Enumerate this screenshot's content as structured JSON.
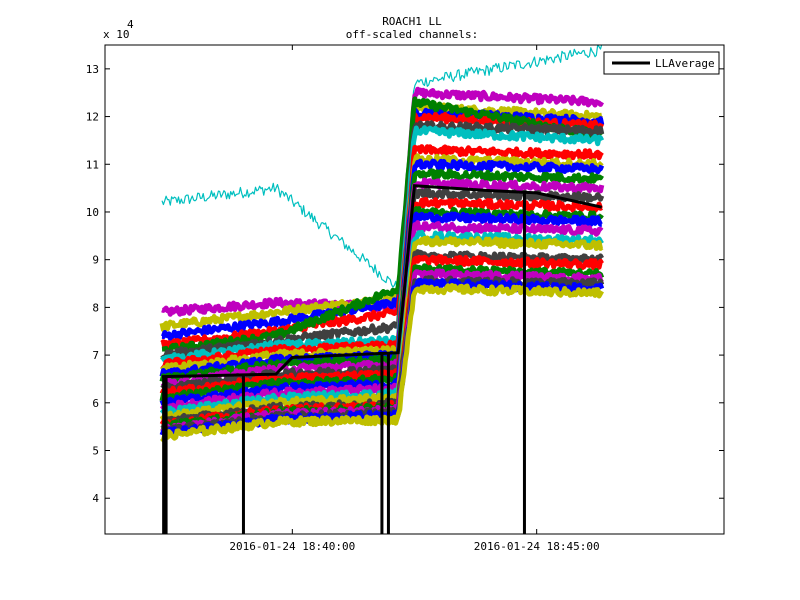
{
  "figure": {
    "title_line1": "ROACH1 LL",
    "title_line2": "off-scaled channels:",
    "y_exponent_base": "x 10",
    "y_exponent_power": "4"
  },
  "legend": {
    "position": "top-right",
    "entries": [
      {
        "label": "LLAverage",
        "color": "#000000"
      }
    ]
  },
  "chart_data": {
    "type": "line",
    "title": "ROACH1 LL",
    "subtitle": "off-scaled channels:",
    "ylabel": "",
    "xlabel": "",
    "x_units": "time",
    "y_scale_note": "x 10^4",
    "xlim": [
      "2016-01-24 18:36:10",
      "2016-01-24 18:48:50"
    ],
    "ylim": [
      3.25,
      13.5
    ],
    "xticks": [
      "2016-01-24 18:40:00",
      "2016-01-24 18:45:00"
    ],
    "yticks": [
      4,
      5,
      6,
      7,
      8,
      9,
      10,
      11,
      12,
      13
    ],
    "grid": false,
    "data_start": "2016-01-24 18:37:20",
    "data_end": "2016-01-24 18:46:20",
    "time_segments": [
      "18:37:20",
      "18:39:40",
      "18:42:10",
      "18:42:30",
      "18:46:20"
    ],
    "background_channels": [
      {
        "color": "#00bfbf",
        "values": [
          10.2,
          10.5,
          8.4,
          12.7,
          13.4
        ],
        "noise": 0.12
      },
      {
        "color": "#bf00bf",
        "values": [
          7.9,
          8.1,
          8.0,
          12.5,
          12.3
        ],
        "noise": 0.08
      },
      {
        "color": "#bfbf00",
        "values": [
          7.6,
          7.9,
          8.2,
          12.2,
          12.0
        ],
        "noise": 0.08
      },
      {
        "color": "#0000ff",
        "values": [
          7.4,
          7.7,
          8.1,
          12.1,
          11.9
        ],
        "noise": 0.08
      },
      {
        "color": "#ff0000",
        "values": [
          7.2,
          7.5,
          7.9,
          12.0,
          11.8
        ],
        "noise": 0.08
      },
      {
        "color": "#008000",
        "values": [
          7.1,
          7.4,
          8.4,
          12.3,
          11.6
        ],
        "noise": 0.08
      },
      {
        "color": "#404040",
        "values": [
          7.0,
          7.3,
          7.6,
          11.8,
          11.7
        ],
        "noise": 0.08
      },
      {
        "color": "#00bfbf",
        "values": [
          6.9,
          7.2,
          7.3,
          11.7,
          11.5
        ],
        "noise": 0.08
      },
      {
        "color": "#ff0000",
        "values": [
          6.8,
          7.1,
          7.2,
          11.3,
          11.2
        ],
        "noise": 0.08
      },
      {
        "color": "#bfbf00",
        "values": [
          6.7,
          7.0,
          7.1,
          11.1,
          11.0
        ],
        "noise": 0.08
      },
      {
        "color": "#0000ff",
        "values": [
          6.6,
          6.9,
          7.0,
          11.0,
          10.9
        ],
        "noise": 0.08
      },
      {
        "color": "#008000",
        "values": [
          6.5,
          6.8,
          6.9,
          10.8,
          10.7
        ],
        "noise": 0.08
      },
      {
        "color": "#bf00bf",
        "values": [
          6.4,
          6.7,
          6.8,
          10.6,
          10.5
        ],
        "noise": 0.08
      },
      {
        "color": "#404040",
        "values": [
          6.3,
          6.6,
          6.7,
          10.4,
          10.3
        ],
        "noise": 0.08
      },
      {
        "color": "#ff0000",
        "values": [
          6.2,
          6.5,
          6.6,
          10.2,
          10.1
        ],
        "noise": 0.08
      },
      {
        "color": "#008000",
        "values": [
          6.1,
          6.4,
          6.5,
          10.0,
          9.9
        ],
        "noise": 0.08
      },
      {
        "color": "#0000ff",
        "values": [
          6.0,
          6.3,
          6.4,
          9.9,
          9.8
        ],
        "noise": 0.08
      },
      {
        "color": "#bf00bf",
        "values": [
          5.9,
          6.2,
          6.3,
          9.7,
          9.6
        ],
        "noise": 0.08
      },
      {
        "color": "#00bfbf",
        "values": [
          5.8,
          6.1,
          6.2,
          9.5,
          9.4
        ],
        "noise": 0.08
      },
      {
        "color": "#bfbf00",
        "values": [
          5.7,
          6.0,
          6.1,
          9.4,
          9.3
        ],
        "noise": 0.08
      },
      {
        "color": "#404040",
        "values": [
          5.6,
          5.9,
          6.0,
          9.1,
          9.0
        ],
        "noise": 0.08
      },
      {
        "color": "#ff0000",
        "values": [
          5.55,
          5.85,
          5.95,
          9.0,
          8.9
        ],
        "noise": 0.08
      },
      {
        "color": "#008000",
        "values": [
          5.5,
          5.8,
          5.9,
          8.8,
          8.7
        ],
        "noise": 0.08
      },
      {
        "color": "#bf00bf",
        "values": [
          5.45,
          5.75,
          5.85,
          8.7,
          8.6
        ],
        "noise": 0.08
      },
      {
        "color": "#404040",
        "values": [
          5.4,
          5.7,
          5.8,
          8.55,
          8.5
        ],
        "noise": 0.08
      },
      {
        "color": "#0000ff",
        "values": [
          5.35,
          5.65,
          5.75,
          8.5,
          8.4
        ],
        "noise": 0.08
      },
      {
        "color": "#bfbf00",
        "values": [
          5.3,
          5.6,
          5.65,
          8.4,
          8.3
        ],
        "noise": 0.08
      }
    ],
    "series": [
      {
        "name": "LLAverage",
        "color": "#000000",
        "x": [
          "18:37:20",
          "18:39:40",
          "18:40:00",
          "18:42:10",
          "18:42:30",
          "18:44:00",
          "18:45:00",
          "18:46:20"
        ],
        "y": [
          6.55,
          6.6,
          6.95,
          7.05,
          10.55,
          10.45,
          10.4,
          10.1
        ],
        "dropouts": [
          "18:37:22",
          "18:37:25",
          "18:39:00",
          "18:41:50",
          "18:41:58",
          "18:44:45"
        ],
        "dropout_min": 3.25
      }
    ]
  }
}
